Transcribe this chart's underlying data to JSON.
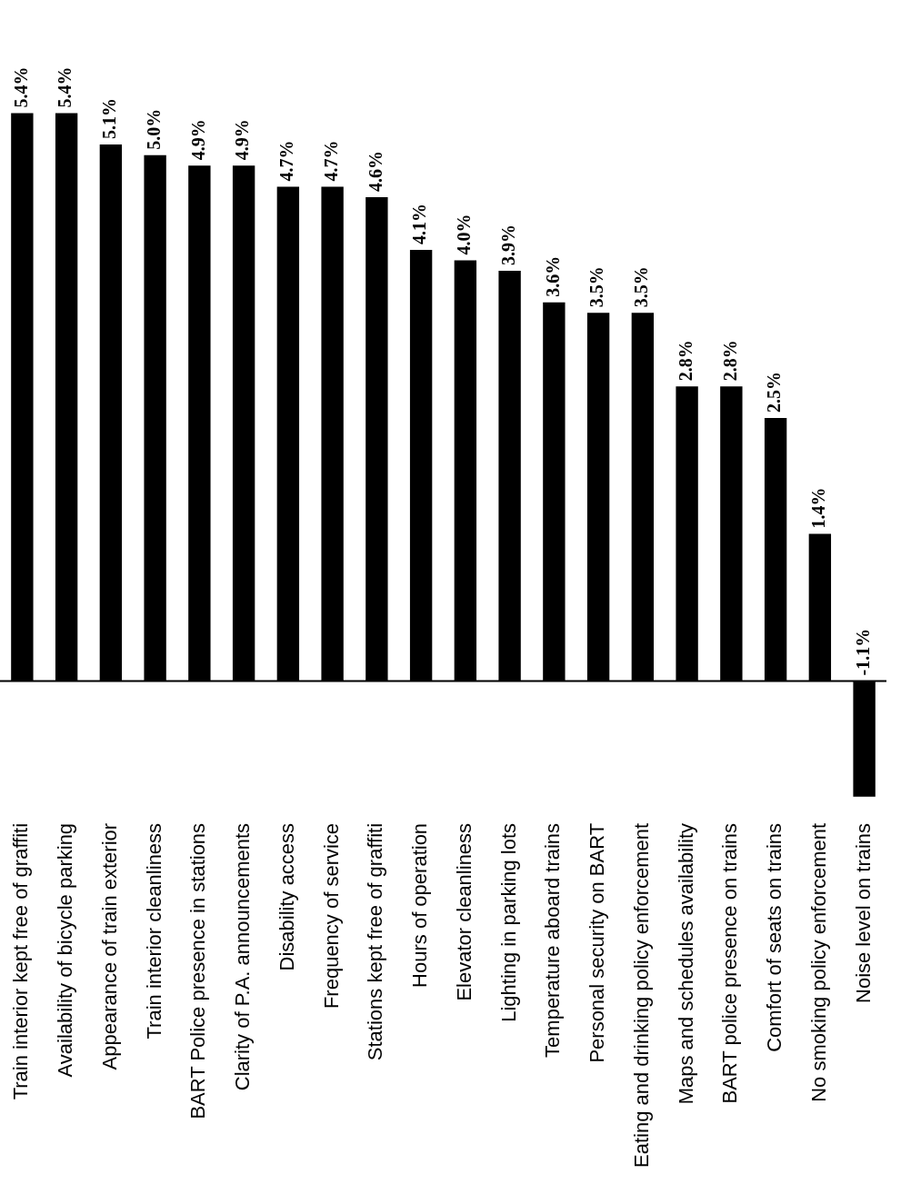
{
  "chart_data": {
    "type": "bar",
    "categories": [
      "Train interior kept free of graffiti",
      "Availability of bicycle parking",
      "Appearance of train exterior",
      "Train interior cleanliness",
      "BART Police presence in stations",
      "Clarity of P.A. announcements",
      "Disability access",
      "Frequency of service",
      "Stations kept free of graffiti",
      "Hours of operation",
      "Elevator cleanliness",
      "Lighting in parking lots",
      "Temperature aboard trains",
      "Personal security on BART",
      "Eating and drinking policy enforcement",
      "Maps and schedules availability",
      "BART police presence on trains",
      "Comfort of seats on trains",
      "No smoking policy enforcement",
      "Noise level on trains"
    ],
    "values": [
      5.4,
      5.4,
      5.1,
      5.0,
      4.9,
      4.9,
      4.7,
      4.7,
      4.6,
      4.1,
      4.0,
      3.9,
      3.6,
      3.5,
      3.5,
      2.8,
      2.8,
      2.5,
      1.4,
      -1.1
    ],
    "value_labels": [
      "5.4%",
      "5.4%",
      "5.1%",
      "5.0%",
      "4.9%",
      "4.9%",
      "4.7%",
      "4.7%",
      "4.6%",
      "4.1%",
      "4.0%",
      "3.9%",
      "3.6%",
      "3.5%",
      "3.5%",
      "2.8%",
      "2.8%",
      "2.5%",
      "1.4%",
      "-1.1%"
    ],
    "color": "#000000",
    "grid": false,
    "legend": false
  }
}
